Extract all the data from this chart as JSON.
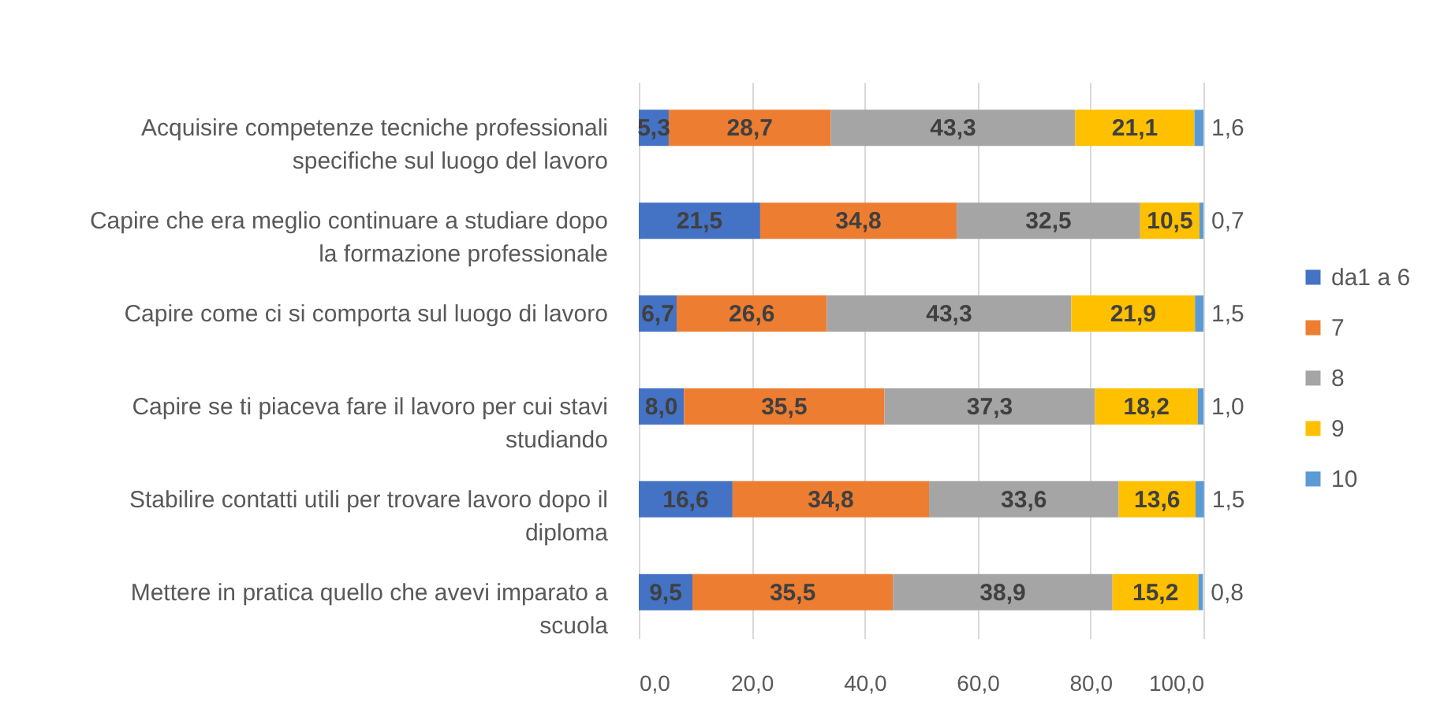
{
  "chart_data": {
    "type": "bar",
    "orientation": "horizontal",
    "stacked": true,
    "categories": [
      "Acquisire competenze tecniche professionali specifiche sul luogo del lavoro",
      "Capire che era meglio continuare a studiare dopo la formazione professionale",
      "Capire come ci si comporta sul luogo di lavoro",
      "Capire se ti piaceva fare il lavoro per cui stavi studiando",
      "Stabilire contatti utili per trovare lavoro dopo il diploma",
      "Mettere in pratica quello che avevi imparato a scuola"
    ],
    "series": [
      {
        "name": "da1 a 6",
        "color": "#4472c4",
        "values": [
          5.3,
          21.5,
          6.7,
          8.0,
          16.6,
          9.5
        ],
        "value_labels": [
          "5,3",
          "21,5",
          "6,7",
          "8,0",
          "16,6",
          "9,5"
        ]
      },
      {
        "name": "7",
        "color": "#ed7d31",
        "values": [
          28.7,
          34.8,
          26.6,
          35.5,
          34.8,
          35.5
        ],
        "value_labels": [
          "28,7",
          "34,8",
          "26,6",
          "35,5",
          "34,8",
          "35,5"
        ]
      },
      {
        "name": "8",
        "color": "#a5a5a5",
        "values": [
          43.3,
          32.5,
          43.3,
          37.3,
          33.6,
          38.9
        ],
        "value_labels": [
          "43,3",
          "32,5",
          "43,3",
          "37,3",
          "33,6",
          "38,9"
        ]
      },
      {
        "name": "9",
        "color": "#ffc000",
        "values": [
          21.1,
          10.5,
          21.9,
          18.2,
          13.6,
          15.2
        ],
        "value_labels": [
          "21,1",
          "10,5",
          "21,9",
          "18,2",
          "13,6",
          "15,2"
        ]
      },
      {
        "name": "10",
        "color": "#5b9bd5",
        "values": [
          1.6,
          0.7,
          1.5,
          1.0,
          1.5,
          0.8
        ],
        "value_labels": [
          "1,6",
          "0,7",
          "1,5",
          "1,0",
          "1,5",
          "0,8"
        ]
      }
    ],
    "xlim": [
      0,
      100
    ],
    "xticks": [
      {
        "value": 0,
        "label": "0,0"
      },
      {
        "value": 20,
        "label": "20,0"
      },
      {
        "value": 40,
        "label": "40,0"
      },
      {
        "value": 60,
        "label": "60,0"
      },
      {
        "value": 80,
        "label": "80,0"
      },
      {
        "value": 100,
        "label": "100,0"
      }
    ],
    "grid": "x",
    "legend": "right"
  }
}
